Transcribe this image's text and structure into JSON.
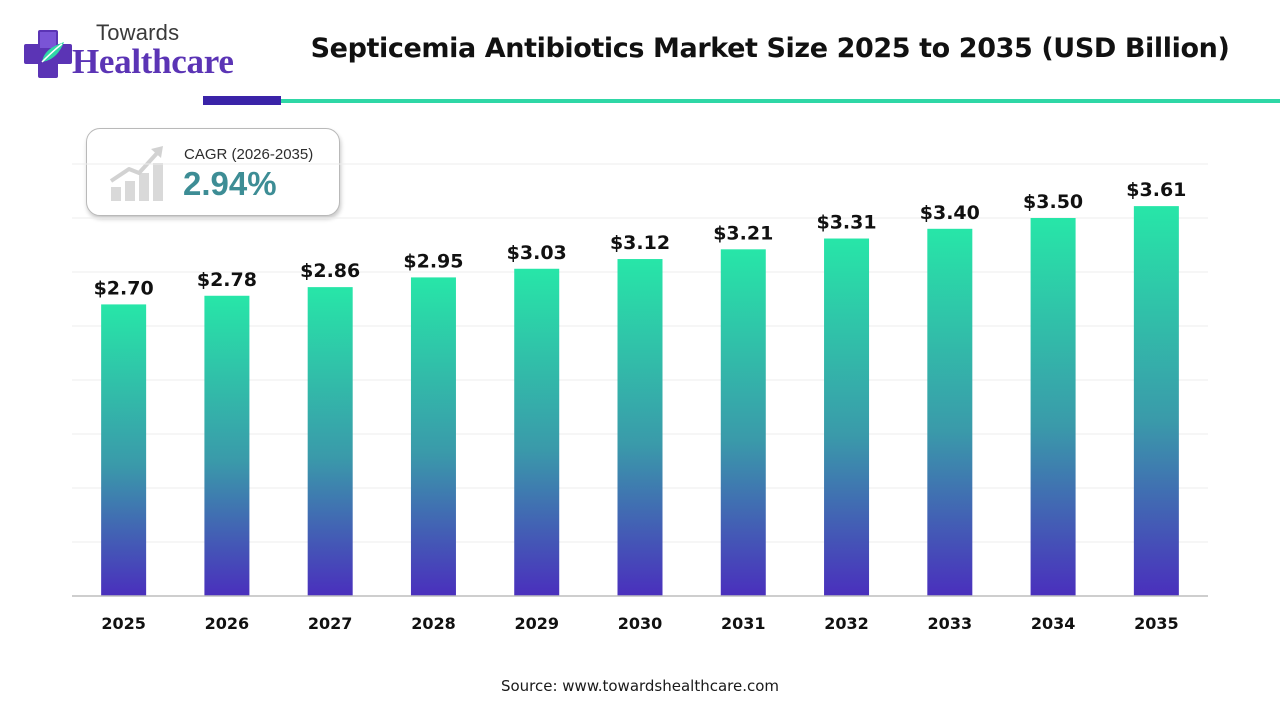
{
  "brand": {
    "name_top": "Towards",
    "name_bottom": "Healthcare",
    "colors": {
      "purple": "#5b34b5",
      "teal": "#2fd7a6"
    }
  },
  "cagr": {
    "label": "CAGR (2026-2035)",
    "value": "2.94%",
    "icon": "growth-chart-icon"
  },
  "source": "Source: www.towardshealthcare.com",
  "chart_data": {
    "type": "bar",
    "title": "Septicemia Antibiotics Market Size 2025 to 2035 (USD Billion)",
    "categories": [
      "2025",
      "2026",
      "2027",
      "2028",
      "2029",
      "2030",
      "2031",
      "2032",
      "2033",
      "2034",
      "2035"
    ],
    "values": [
      2.7,
      2.78,
      2.86,
      2.95,
      3.03,
      3.12,
      3.21,
      3.31,
      3.4,
      3.5,
      3.61
    ],
    "value_labels": [
      "$2.70",
      "$2.78",
      "$2.86",
      "$2.95",
      "$3.03",
      "$3.12",
      "$3.21",
      "$3.31",
      "$3.40",
      "$3.50",
      "$3.61"
    ],
    "xlabel": "",
    "ylabel": "",
    "ylim": [
      0,
      4
    ],
    "grid": true,
    "y_axis_visible": false,
    "bar_gradient": {
      "top": "#27e6a8",
      "middle": "#3a9aaa",
      "bottom": "#4a2fbd"
    }
  }
}
